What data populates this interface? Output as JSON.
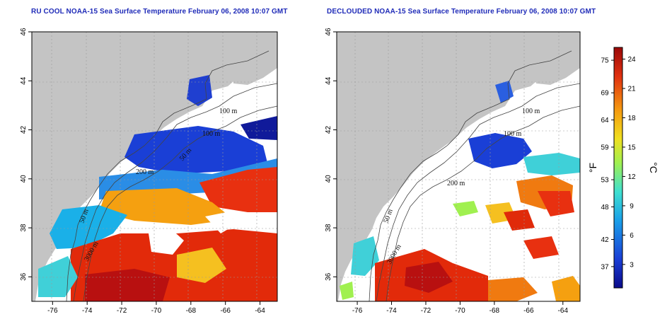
{
  "panels": [
    {
      "title": "RU COOL NOAA-15 Sea Surface Temperature February 06, 2008 10:07 GMT",
      "contour_labels": [
        "100 m",
        "100 m",
        "50 m",
        "200 m",
        "50 m",
        "3000 m"
      ]
    },
    {
      "title": "DECLOUDED NOAA-15 Sea Surface Temperature February 06, 2008 10:07 GMT",
      "contour_labels": [
        "100 m",
        "100 m",
        "200 m",
        "50 m",
        "3000 m"
      ]
    }
  ],
  "axes": {
    "x_ticks": [
      "-76",
      "-74",
      "-72",
      "-70",
      "-68",
      "-66",
      "-64"
    ],
    "y_ticks": [
      "36",
      "38",
      "40",
      "42",
      "44",
      "46"
    ]
  },
  "colorbar": {
    "fahrenheit_ticks": [
      "75",
      "69",
      "64",
      "59",
      "53",
      "48",
      "42",
      "37"
    ],
    "celsius_ticks": [
      "24",
      "21",
      "18",
      "15",
      "12",
      "9",
      "6",
      "3"
    ],
    "fahrenheit_unit": "°F",
    "celsius_unit": "°C",
    "colors": [
      "#0a0a8a",
      "#1a3fd6",
      "#1a9fe8",
      "#3fe0d0",
      "#a0f050",
      "#f0e020",
      "#f59a10",
      "#e03010",
      "#9a0808"
    ]
  },
  "colors": {
    "title": "#1f2bb8",
    "land": "#c4c4c4",
    "ocean": "#ffffff",
    "contour": "#444444",
    "grid": "#9a9a9a"
  }
}
